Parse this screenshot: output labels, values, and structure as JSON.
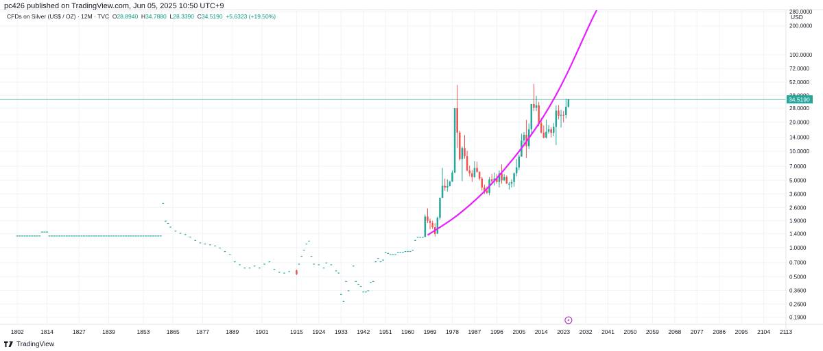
{
  "header": {
    "published": "pc426 published on TradingView.com, Jun 05, 2025 10:50 UTC+9"
  },
  "legend": {
    "symbol": "CFDs on Silver (US$ / OZ) · 12M · TVC",
    "open_label": "O",
    "open": "28.8940",
    "high_label": "H",
    "high": "34.7880",
    "low_label": "L",
    "low": "28.3390",
    "close_label": "C",
    "close": "34.5190",
    "change": "+5.6323 (+19.50%)"
  },
  "currency": "USD",
  "footer": {
    "brand": "TradingView"
  },
  "colors": {
    "up": "#26a69a",
    "down": "#ef5350",
    "curve": "#e91eff",
    "price_line": "#26a69a",
    "grid": "#f0f3fa",
    "axis_text": "#131722"
  },
  "chart_data": {
    "type": "candlestick",
    "scale": "log",
    "ylim": [
      0.16,
      290
    ],
    "xlim": [
      1795,
      2113
    ],
    "y_ticks": [
      "0.1900",
      "0.2600",
      "0.3600",
      "0.5000",
      "0.7000",
      "1.0000",
      "1.4000",
      "1.9000",
      "2.6000",
      "3.6000",
      "5.0000",
      "7.0000",
      "10.0000",
      "14.0000",
      "20.0000",
      "28.0000",
      "38.0000",
      "52.0000",
      "72.0000",
      "100.0000",
      "200.0000",
      "280.0000"
    ],
    "y_tick_values": [
      0.19,
      0.26,
      0.36,
      0.5,
      0.7,
      1.0,
      1.4,
      1.9,
      2.6,
      3.6,
      5.0,
      7.0,
      10.0,
      14.0,
      20.0,
      28.0,
      38.0,
      52.0,
      72.0,
      100.0,
      200.0,
      280.0
    ],
    "x_ticks": [
      "1802",
      "1814",
      "1827",
      "1839",
      "1853",
      "1865",
      "1877",
      "1889",
      "1901",
      "1915",
      "1924",
      "1933",
      "1942",
      "1951",
      "1960",
      "1969",
      "1978",
      "1987",
      "1996",
      "2005",
      "2014",
      "2023",
      "2032",
      "2041",
      "2050",
      "2059",
      "2068",
      "2077",
      "2086",
      "2095",
      "2104",
      "2113"
    ],
    "last_price": 34.519,
    "last_price_label": "34.5190",
    "early_flat": {
      "from": 1802,
      "to": 1860,
      "value": 1.32,
      "bump_year": 1813,
      "bump_value": 1.45
    },
    "candles": [
      {
        "x": 1861,
        "o": 2.9,
        "h": 2.9,
        "l": 2.9,
        "c": 2.9
      },
      {
        "x": 1862,
        "o": 1.9,
        "h": 1.9,
        "l": 1.9,
        "c": 1.9
      },
      {
        "x": 1863,
        "o": 1.8,
        "h": 1.8,
        "l": 1.8,
        "c": 1.8
      },
      {
        "x": 1864,
        "o": 1.65,
        "h": 1.65,
        "l": 1.65,
        "c": 1.65
      },
      {
        "x": 1866,
        "o": 1.5,
        "h": 1.5,
        "l": 1.5,
        "c": 1.5
      },
      {
        "x": 1868,
        "o": 1.42,
        "h": 1.42,
        "l": 1.42,
        "c": 1.42
      },
      {
        "x": 1870,
        "o": 1.38,
        "h": 1.38,
        "l": 1.38,
        "c": 1.38
      },
      {
        "x": 1872,
        "o": 1.3,
        "h": 1.3,
        "l": 1.3,
        "c": 1.3
      },
      {
        "x": 1874,
        "o": 1.2,
        "h": 1.2,
        "l": 1.2,
        "c": 1.2
      },
      {
        "x": 1876,
        "o": 1.13,
        "h": 1.13,
        "l": 1.13,
        "c": 1.13
      },
      {
        "x": 1878,
        "o": 1.1,
        "h": 1.1,
        "l": 1.1,
        "c": 1.1
      },
      {
        "x": 1880,
        "o": 1.08,
        "h": 1.08,
        "l": 1.08,
        "c": 1.08
      },
      {
        "x": 1882,
        "o": 1.05,
        "h": 1.05,
        "l": 1.05,
        "c": 1.05
      },
      {
        "x": 1884,
        "o": 1.0,
        "h": 1.0,
        "l": 1.0,
        "c": 1.0
      },
      {
        "x": 1886,
        "o": 0.92,
        "h": 0.92,
        "l": 0.92,
        "c": 0.92
      },
      {
        "x": 1888,
        "o": 0.85,
        "h": 0.85,
        "l": 0.85,
        "c": 0.85
      },
      {
        "x": 1890,
        "o": 0.72,
        "h": 0.72,
        "l": 0.72,
        "c": 0.72
      },
      {
        "x": 1892,
        "o": 0.67,
        "h": 0.67,
        "l": 0.67,
        "c": 0.67
      },
      {
        "x": 1894,
        "o": 0.62,
        "h": 0.62,
        "l": 0.62,
        "c": 0.62
      },
      {
        "x": 1896,
        "o": 0.62,
        "h": 0.62,
        "l": 0.62,
        "c": 0.62
      },
      {
        "x": 1898,
        "o": 0.65,
        "h": 0.65,
        "l": 0.65,
        "c": 0.65
      },
      {
        "x": 1900,
        "o": 0.62,
        "h": 0.62,
        "l": 0.62,
        "c": 0.62
      },
      {
        "x": 1902,
        "o": 0.68,
        "h": 0.68,
        "l": 0.68,
        "c": 0.68
      },
      {
        "x": 1904,
        "o": 0.72,
        "h": 0.72,
        "l": 0.72,
        "c": 0.72
      },
      {
        "x": 1906,
        "o": 0.6,
        "h": 0.6,
        "l": 0.6,
        "c": 0.6
      },
      {
        "x": 1908,
        "o": 0.56,
        "h": 0.56,
        "l": 0.56,
        "c": 0.56
      },
      {
        "x": 1910,
        "o": 0.55,
        "h": 0.55,
        "l": 0.55,
        "c": 0.55
      },
      {
        "x": 1912,
        "o": 0.57,
        "h": 0.57,
        "l": 0.57,
        "c": 0.57
      },
      {
        "x": 1915,
        "o": 0.58,
        "h": 0.59,
        "l": 0.52,
        "c": 0.53
      },
      {
        "x": 1916,
        "o": 0.68,
        "h": 0.68,
        "l": 0.68,
        "c": 0.68
      },
      {
        "x": 1917,
        "o": 0.82,
        "h": 0.82,
        "l": 0.82,
        "c": 0.82
      },
      {
        "x": 1918,
        "o": 0.95,
        "h": 0.95,
        "l": 0.95,
        "c": 0.95
      },
      {
        "x": 1919,
        "o": 1.1,
        "h": 1.1,
        "l": 1.1,
        "c": 1.1
      },
      {
        "x": 1920,
        "o": 1.18,
        "h": 1.18,
        "l": 1.18,
        "c": 1.18
      },
      {
        "x": 1921,
        "o": 0.82,
        "h": 0.82,
        "l": 0.82,
        "c": 0.82
      },
      {
        "x": 1922,
        "o": 0.68,
        "h": 0.68,
        "l": 0.68,
        "c": 0.68
      },
      {
        "x": 1924,
        "o": 0.67,
        "h": 0.67,
        "l": 0.67,
        "c": 0.67
      },
      {
        "x": 1926,
        "o": 0.62,
        "h": 0.62,
        "l": 0.62,
        "c": 0.62
      },
      {
        "x": 1927,
        "o": 0.7,
        "h": 0.7,
        "l": 0.7,
        "c": 0.7
      },
      {
        "x": 1929,
        "o": 0.67,
        "h": 0.67,
        "l": 0.67,
        "c": 0.67
      },
      {
        "x": 1931,
        "o": 0.58,
        "h": 0.58,
        "l": 0.58,
        "c": 0.58
      },
      {
        "x": 1932,
        "o": 0.55,
        "h": 0.55,
        "l": 0.55,
        "c": 0.55
      },
      {
        "x": 1933,
        "o": 0.33,
        "h": 0.33,
        "l": 0.33,
        "c": 0.33
      },
      {
        "x": 1934,
        "o": 0.28,
        "h": 0.28,
        "l": 0.28,
        "c": 0.28
      },
      {
        "x": 1935,
        "o": 0.45,
        "h": 0.45,
        "l": 0.45,
        "c": 0.45
      },
      {
        "x": 1936,
        "o": 0.36,
        "h": 0.36,
        "l": 0.36,
        "c": 0.36
      },
      {
        "x": 1938,
        "o": 0.65,
        "h": 0.65,
        "l": 0.65,
        "c": 0.65
      },
      {
        "x": 1939,
        "o": 0.45,
        "h": 0.45,
        "l": 0.45,
        "c": 0.45
      },
      {
        "x": 1940,
        "o": 0.42,
        "h": 0.42,
        "l": 0.42,
        "c": 0.42
      },
      {
        "x": 1941,
        "o": 0.4,
        "h": 0.4,
        "l": 0.4,
        "c": 0.4
      },
      {
        "x": 1942,
        "o": 0.35,
        "h": 0.35,
        "l": 0.35,
        "c": 0.35
      },
      {
        "x": 1943,
        "o": 0.35,
        "h": 0.35,
        "l": 0.35,
        "c": 0.35
      },
      {
        "x": 1944,
        "o": 0.36,
        "h": 0.36,
        "l": 0.36,
        "c": 0.36
      },
      {
        "x": 1945,
        "o": 0.44,
        "h": 0.44,
        "l": 0.44,
        "c": 0.44
      },
      {
        "x": 1946,
        "o": 0.45,
        "h": 0.45,
        "l": 0.45,
        "c": 0.45
      },
      {
        "x": 1947,
        "o": 0.72,
        "h": 0.72,
        "l": 0.72,
        "c": 0.72
      },
      {
        "x": 1948,
        "o": 0.78,
        "h": 0.78,
        "l": 0.78,
        "c": 0.78
      },
      {
        "x": 1949,
        "o": 0.72,
        "h": 0.72,
        "l": 0.72,
        "c": 0.72
      },
      {
        "x": 1950,
        "o": 0.75,
        "h": 0.75,
        "l": 0.75,
        "c": 0.75
      },
      {
        "x": 1951,
        "o": 0.9,
        "h": 0.9,
        "l": 0.9,
        "c": 0.9
      },
      {
        "x": 1952,
        "o": 0.88,
        "h": 0.88,
        "l": 0.88,
        "c": 0.88
      },
      {
        "x": 1953,
        "o": 0.85,
        "h": 0.85,
        "l": 0.85,
        "c": 0.85
      },
      {
        "x": 1954,
        "o": 0.85,
        "h": 0.85,
        "l": 0.85,
        "c": 0.85
      },
      {
        "x": 1955,
        "o": 0.85,
        "h": 0.85,
        "l": 0.85,
        "c": 0.85
      },
      {
        "x": 1956,
        "o": 0.9,
        "h": 0.9,
        "l": 0.9,
        "c": 0.9
      },
      {
        "x": 1957,
        "o": 0.9,
        "h": 0.9,
        "l": 0.9,
        "c": 0.9
      },
      {
        "x": 1958,
        "o": 0.9,
        "h": 0.9,
        "l": 0.9,
        "c": 0.9
      },
      {
        "x": 1959,
        "o": 0.92,
        "h": 0.92,
        "l": 0.92,
        "c": 0.92
      },
      {
        "x": 1960,
        "o": 0.92,
        "h": 0.92,
        "l": 0.92,
        "c": 0.92
      },
      {
        "x": 1961,
        "o": 0.92,
        "h": 0.92,
        "l": 0.92,
        "c": 0.92
      },
      {
        "x": 1962,
        "o": 0.95,
        "h": 0.95,
        "l": 0.95,
        "c": 0.95
      },
      {
        "x": 1963,
        "o": 1.2,
        "h": 1.2,
        "l": 1.2,
        "c": 1.2
      },
      {
        "x": 1964,
        "o": 1.29,
        "h": 1.29,
        "l": 1.29,
        "c": 1.29
      },
      {
        "x": 1965,
        "o": 1.29,
        "h": 1.29,
        "l": 1.29,
        "c": 1.29
      },
      {
        "x": 1966,
        "o": 1.29,
        "h": 1.29,
        "l": 1.29,
        "c": 1.29
      },
      {
        "x": 1967,
        "o": 1.29,
        "h": 2.2,
        "l": 1.29,
        "c": 2.1
      },
      {
        "x": 1968,
        "o": 2.1,
        "h": 2.55,
        "l": 1.8,
        "c": 1.9
      },
      {
        "x": 1969,
        "o": 1.9,
        "h": 2.0,
        "l": 1.55,
        "c": 1.8
      },
      {
        "x": 1970,
        "o": 1.8,
        "h": 1.9,
        "l": 1.56,
        "c": 1.63
      },
      {
        "x": 1971,
        "o": 1.63,
        "h": 1.8,
        "l": 1.3,
        "c": 1.39
      },
      {
        "x": 1972,
        "o": 1.39,
        "h": 2.1,
        "l": 1.39,
        "c": 2.04
      },
      {
        "x": 1973,
        "o": 2.04,
        "h": 3.3,
        "l": 1.95,
        "c": 3.28
      },
      {
        "x": 1974,
        "o": 3.28,
        "h": 6.7,
        "l": 3.27,
        "c": 4.38
      },
      {
        "x": 1975,
        "o": 4.38,
        "h": 5.2,
        "l": 3.9,
        "c": 4.2
      },
      {
        "x": 1976,
        "o": 4.2,
        "h": 5.1,
        "l": 3.8,
        "c": 4.35
      },
      {
        "x": 1977,
        "o": 4.35,
        "h": 4.95,
        "l": 4.3,
        "c": 4.83
      },
      {
        "x": 1978,
        "o": 4.83,
        "h": 6.3,
        "l": 4.8,
        "c": 6.0
      },
      {
        "x": 1979,
        "o": 6.0,
        "h": 28.0,
        "l": 5.9,
        "c": 28.0
      },
      {
        "x": 1980,
        "o": 28.0,
        "h": 48.7,
        "l": 10.8,
        "c": 15.6
      },
      {
        "x": 1981,
        "o": 15.6,
        "h": 16.3,
        "l": 8.0,
        "c": 8.3
      },
      {
        "x": 1982,
        "o": 8.3,
        "h": 11.2,
        "l": 4.9,
        "c": 10.8
      },
      {
        "x": 1983,
        "o": 10.8,
        "h": 14.7,
        "l": 8.4,
        "c": 8.9
      },
      {
        "x": 1984,
        "o": 8.9,
        "h": 10.1,
        "l": 6.2,
        "c": 6.3
      },
      {
        "x": 1985,
        "o": 6.3,
        "h": 7.1,
        "l": 5.5,
        "c": 5.9
      },
      {
        "x": 1986,
        "o": 5.9,
        "h": 6.4,
        "l": 4.8,
        "c": 5.4
      },
      {
        "x": 1987,
        "o": 5.4,
        "h": 7.9,
        "l": 5.3,
        "c": 6.7
      },
      {
        "x": 1988,
        "o": 6.7,
        "h": 7.8,
        "l": 6.0,
        "c": 6.1
      },
      {
        "x": 1989,
        "o": 6.1,
        "h": 6.2,
        "l": 5.0,
        "c": 5.2
      },
      {
        "x": 1990,
        "o": 5.2,
        "h": 5.4,
        "l": 3.9,
        "c": 4.2
      },
      {
        "x": 1991,
        "o": 4.2,
        "h": 4.5,
        "l": 3.6,
        "c": 3.9
      },
      {
        "x": 1992,
        "o": 3.9,
        "h": 4.3,
        "l": 3.6,
        "c": 3.7
      },
      {
        "x": 1993,
        "o": 3.7,
        "h": 5.4,
        "l": 3.5,
        "c": 5.1
      },
      {
        "x": 1994,
        "o": 5.1,
        "h": 5.8,
        "l": 4.6,
        "c": 4.9
      },
      {
        "x": 1995,
        "o": 4.9,
        "h": 6.0,
        "l": 4.4,
        "c": 5.2
      },
      {
        "x": 1996,
        "o": 5.2,
        "h": 5.8,
        "l": 4.6,
        "c": 4.8
      },
      {
        "x": 1997,
        "o": 4.8,
        "h": 6.3,
        "l": 4.2,
        "c": 5.9
      },
      {
        "x": 1998,
        "o": 5.9,
        "h": 7.3,
        "l": 4.6,
        "c": 5.0
      },
      {
        "x": 1999,
        "o": 5.0,
        "h": 5.8,
        "l": 4.9,
        "c": 5.4
      },
      {
        "x": 2000,
        "o": 5.4,
        "h": 5.6,
        "l": 4.6,
        "c": 4.6
      },
      {
        "x": 2001,
        "o": 4.6,
        "h": 4.8,
        "l": 4.0,
        "c": 4.6
      },
      {
        "x": 2002,
        "o": 4.6,
        "h": 5.1,
        "l": 4.2,
        "c": 4.8
      },
      {
        "x": 2003,
        "o": 4.8,
        "h": 6.0,
        "l": 4.3,
        "c": 5.9
      },
      {
        "x": 2004,
        "o": 5.9,
        "h": 8.3,
        "l": 5.5,
        "c": 6.8
      },
      {
        "x": 2005,
        "o": 6.8,
        "h": 9.2,
        "l": 6.4,
        "c": 8.8
      },
      {
        "x": 2006,
        "o": 8.8,
        "h": 15.2,
        "l": 8.8,
        "c": 12.9
      },
      {
        "x": 2007,
        "o": 12.9,
        "h": 15.8,
        "l": 11.2,
        "c": 14.8
      },
      {
        "x": 2008,
        "o": 14.8,
        "h": 21.2,
        "l": 8.5,
        "c": 11.3
      },
      {
        "x": 2009,
        "o": 11.3,
        "h": 19.4,
        "l": 10.5,
        "c": 16.9
      },
      {
        "x": 2010,
        "o": 16.9,
        "h": 31.0,
        "l": 14.6,
        "c": 30.9
      },
      {
        "x": 2011,
        "o": 30.9,
        "h": 49.8,
        "l": 26.1,
        "c": 28.2
      },
      {
        "x": 2012,
        "o": 28.2,
        "h": 37.5,
        "l": 26.1,
        "c": 30.0
      },
      {
        "x": 2013,
        "o": 30.0,
        "h": 32.5,
        "l": 18.2,
        "c": 19.5
      },
      {
        "x": 2014,
        "o": 19.5,
        "h": 22.2,
        "l": 15.3,
        "c": 15.6
      },
      {
        "x": 2015,
        "o": 15.6,
        "h": 18.5,
        "l": 13.6,
        "c": 13.8
      },
      {
        "x": 2016,
        "o": 13.8,
        "h": 21.2,
        "l": 13.6,
        "c": 15.9
      },
      {
        "x": 2017,
        "o": 15.9,
        "h": 18.7,
        "l": 15.2,
        "c": 16.9
      },
      {
        "x": 2018,
        "o": 16.9,
        "h": 17.7,
        "l": 13.9,
        "c": 15.5
      },
      {
        "x": 2019,
        "o": 15.5,
        "h": 19.6,
        "l": 14.3,
        "c": 17.9
      },
      {
        "x": 2020,
        "o": 17.9,
        "h": 29.8,
        "l": 11.6,
        "c": 26.4
      },
      {
        "x": 2021,
        "o": 26.4,
        "h": 30.1,
        "l": 21.4,
        "c": 23.3
      },
      {
        "x": 2022,
        "o": 23.3,
        "h": 26.9,
        "l": 17.6,
        "c": 23.9
      },
      {
        "x": 2023,
        "o": 23.9,
        "h": 26.1,
        "l": 19.9,
        "c": 23.8
      },
      {
        "x": 2024,
        "o": 23.8,
        "h": 35.0,
        "l": 21.9,
        "c": 28.9
      },
      {
        "x": 2025,
        "o": 28.894,
        "h": 34.788,
        "l": 28.339,
        "c": 34.519
      }
    ],
    "curve": {
      "x_start": 1968,
      "y_start": 1.35,
      "points": [
        [
          1968,
          1.35
        ],
        [
          1975,
          1.75
        ],
        [
          1980,
          2.15
        ],
        [
          1985,
          2.75
        ],
        [
          1990,
          3.6
        ],
        [
          1995,
          4.9
        ],
        [
          2000,
          6.9
        ],
        [
          2005,
          9.9
        ],
        [
          2010,
          14.8
        ],
        [
          2015,
          23
        ],
        [
          2020,
          38
        ],
        [
          2025,
          68
        ],
        [
          2030,
          130
        ],
        [
          2035,
          250
        ],
        [
          2040,
          430
        ]
      ]
    }
  }
}
